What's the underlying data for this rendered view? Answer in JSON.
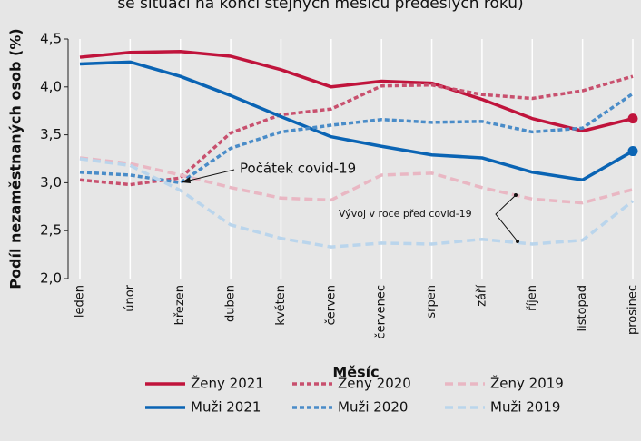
{
  "chart_data": {
    "type": "line",
    "subtitle": "se situací na konci stejných měsíců předešlých roků)",
    "y_label": "Podíl nezaměstnaných osob (%)",
    "x_label": "Měsíc",
    "categories": [
      "leden",
      "únor",
      "březen",
      "duben",
      "květen",
      "červen",
      "červenec",
      "srpen",
      "září",
      "říjen",
      "listopad",
      "prosinec"
    ],
    "series": [
      {
        "name": "Ženy 2021",
        "color": "#c0143c",
        "dash": "solid",
        "end_dot": true,
        "values": [
          4.31,
          4.36,
          4.37,
          4.32,
          4.18,
          4.0,
          4.06,
          4.04,
          3.87,
          3.67,
          3.54,
          3.67
        ]
      },
      {
        "name": "Ženy 2020",
        "color": "#c8506e",
        "dash": "short",
        "values": [
          3.03,
          2.98,
          3.05,
          3.52,
          3.71,
          3.77,
          4.01,
          4.02,
          3.92,
          3.88,
          3.96,
          4.11
        ]
      },
      {
        "name": "Ženy 2019",
        "color": "#e9b7c3",
        "dash": "long",
        "values": [
          3.26,
          3.2,
          3.08,
          2.95,
          2.84,
          2.82,
          3.08,
          3.1,
          2.95,
          2.83,
          2.79,
          2.93
        ]
      },
      {
        "name": "Muži 2021",
        "color": "#0a64b4",
        "dash": "solid",
        "end_dot": true,
        "values": [
          4.24,
          4.26,
          4.11,
          3.91,
          3.69,
          3.48,
          3.38,
          3.29,
          3.26,
          3.11,
          3.03,
          3.33
        ]
      },
      {
        "name": "Muži 2020",
        "color": "#4a8cc8",
        "dash": "short",
        "values": [
          3.11,
          3.08,
          3.0,
          3.36,
          3.53,
          3.6,
          3.66,
          3.63,
          3.64,
          3.53,
          3.57,
          3.93
        ]
      },
      {
        "name": "Muži 2019",
        "color": "#bad5ec",
        "dash": "long",
        "values": [
          3.25,
          3.18,
          2.92,
          2.56,
          2.42,
          2.33,
          2.37,
          2.36,
          2.41,
          2.36,
          2.4,
          2.81
        ]
      }
    ],
    "ylim": [
      2.0,
      4.5
    ],
    "yticks": [
      {
        "value": 2.0,
        "label": "2,0"
      },
      {
        "value": 2.5,
        "label": "2,5"
      },
      {
        "value": 3.0,
        "label": "3,0"
      },
      {
        "value": 3.5,
        "label": "3,5"
      },
      {
        "value": 4.0,
        "label": "4,0"
      },
      {
        "value": 4.5,
        "label": "4,5"
      }
    ],
    "grid": "x",
    "annotations": [
      "Počátek covid-19",
      "Vývoj v roce před covid-19"
    ]
  }
}
